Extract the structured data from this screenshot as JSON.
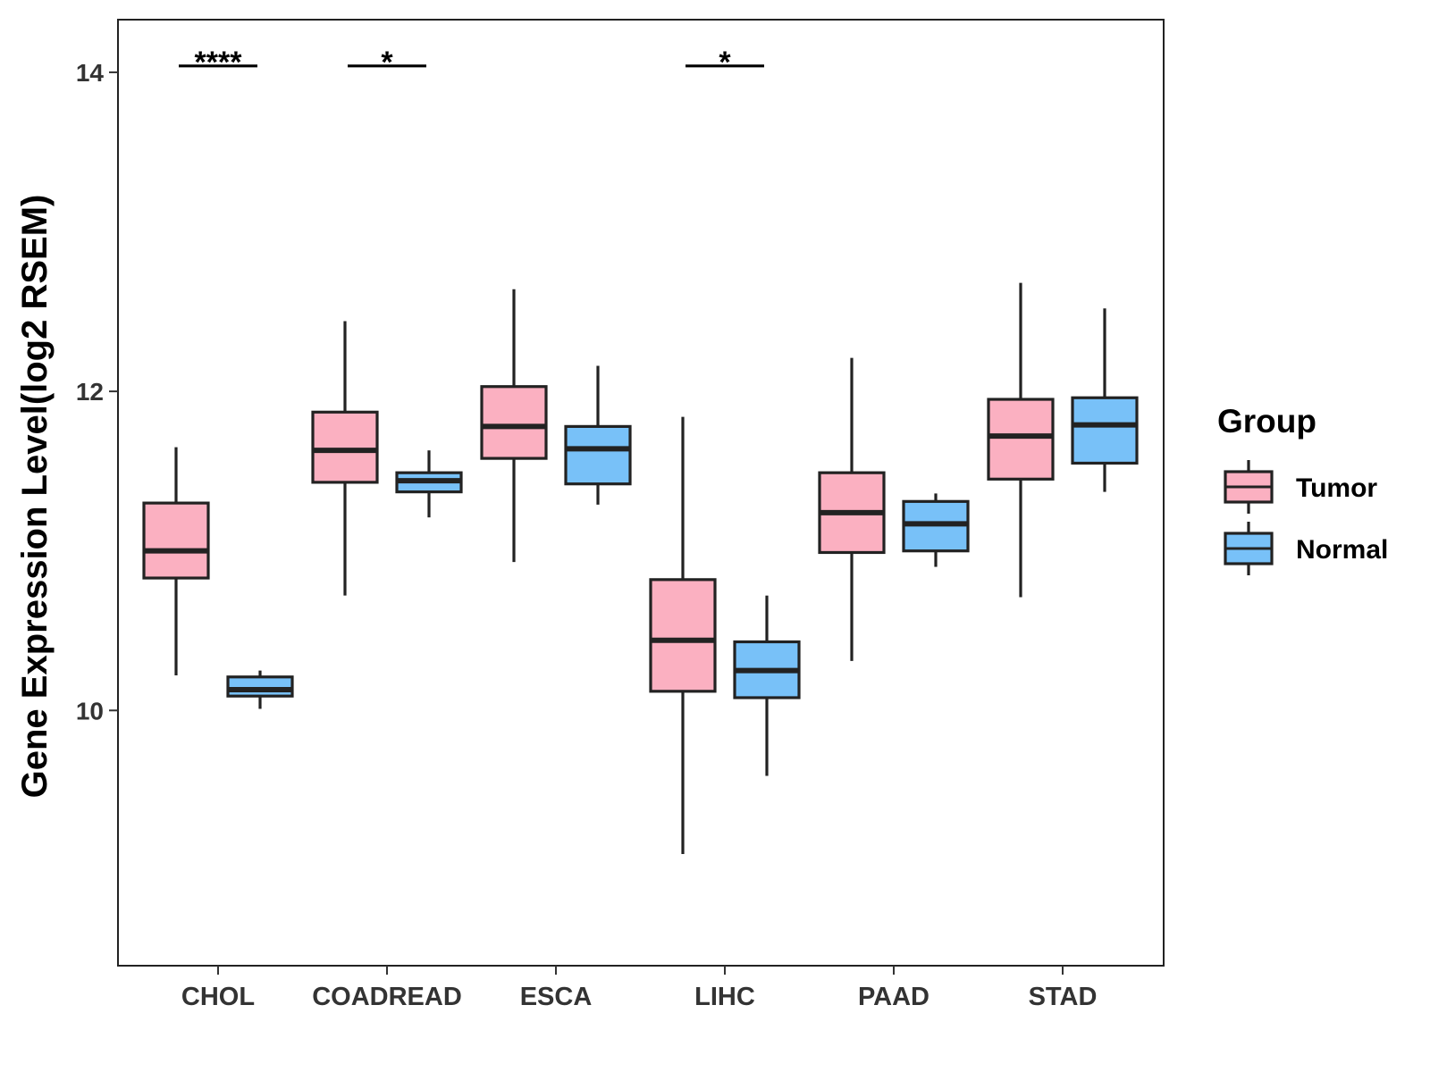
{
  "chart_data": {
    "type": "boxplot",
    "title": "",
    "xlabel": "",
    "ylabel": "Gene Expression Level(log2 RSEM)",
    "ylim": [
      8.4,
      14.33
    ],
    "yticks": [
      10,
      12,
      14
    ],
    "categories": [
      "CHOL",
      "COADREAD",
      "ESCA",
      "LIHC",
      "PAAD",
      "STAD"
    ],
    "grid": false,
    "legend": {
      "title": "Group",
      "position": "right",
      "entries": [
        "Tumor",
        "Normal"
      ]
    },
    "colors": {
      "Tumor": "#fbb0c1",
      "Normal": "#78c1f8",
      "outline": "#222222"
    },
    "series": [
      {
        "name": "Tumor",
        "boxes": [
          {
            "category": "CHOL",
            "whisker_low": 10.22,
            "q1": 10.83,
            "median": 11.0,
            "q3": 11.3,
            "whisker_high": 11.65
          },
          {
            "category": "COADREAD",
            "whisker_low": 10.72,
            "q1": 11.43,
            "median": 11.63,
            "q3": 11.87,
            "whisker_high": 12.44
          },
          {
            "category": "ESCA",
            "whisker_low": 10.93,
            "q1": 11.58,
            "median": 11.78,
            "q3": 12.03,
            "whisker_high": 12.64
          },
          {
            "category": "LIHC",
            "whisker_low": 9.1,
            "q1": 10.12,
            "median": 10.44,
            "q3": 10.82,
            "whisker_high": 11.84
          },
          {
            "category": "PAAD",
            "whisker_low": 10.31,
            "q1": 10.99,
            "median": 11.24,
            "q3": 11.49,
            "whisker_high": 12.21
          },
          {
            "category": "STAD",
            "whisker_low": 10.71,
            "q1": 11.45,
            "median": 11.72,
            "q3": 11.95,
            "whisker_high": 12.68
          }
        ]
      },
      {
        "name": "Normal",
        "boxes": [
          {
            "category": "CHOL",
            "whisker_low": 10.01,
            "q1": 10.09,
            "median": 10.13,
            "q3": 10.21,
            "whisker_high": 10.25
          },
          {
            "category": "COADREAD",
            "whisker_low": 11.21,
            "q1": 11.37,
            "median": 11.44,
            "q3": 11.49,
            "whisker_high": 11.63
          },
          {
            "category": "ESCA",
            "whisker_low": 11.29,
            "q1": 11.42,
            "median": 11.64,
            "q3": 11.78,
            "whisker_high": 12.16
          },
          {
            "category": "LIHC",
            "whisker_low": 9.59,
            "q1": 10.08,
            "median": 10.25,
            "q3": 10.43,
            "whisker_high": 10.72
          },
          {
            "category": "PAAD",
            "whisker_low": 10.9,
            "q1": 11.0,
            "median": 11.17,
            "q3": 11.31,
            "whisker_high": 11.36
          },
          {
            "category": "STAD",
            "whisker_low": 11.37,
            "q1": 11.55,
            "median": 11.79,
            "q3": 11.96,
            "whisker_high": 12.52
          }
        ]
      }
    ],
    "annotations": [
      {
        "category": "CHOL",
        "label": "****",
        "y": 14.04
      },
      {
        "category": "COADREAD",
        "label": "*",
        "y": 14.04
      },
      {
        "category": "LIHC",
        "label": "*",
        "y": 14.04
      }
    ]
  }
}
